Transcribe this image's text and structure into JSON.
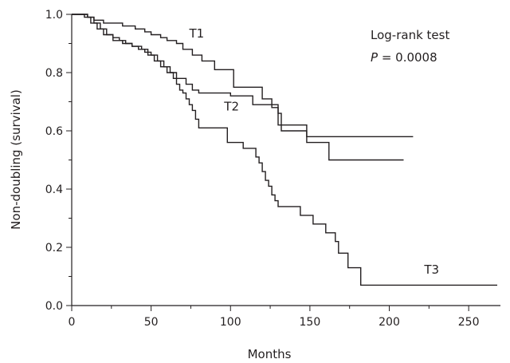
{
  "chart_data": {
    "type": "line",
    "step": true,
    "xlabel": "Months",
    "ylabel": "Non-doubling (survival)",
    "xlim": [
      0,
      270
    ],
    "ylim": [
      0,
      1.0
    ],
    "x_ticks": [
      0,
      50,
      100,
      150,
      200,
      250
    ],
    "y_ticks": [
      0.0,
      0.2,
      0.4,
      0.6,
      0.8,
      1.0
    ],
    "y_tick_labels": [
      "0.0",
      "0.2",
      "0.4",
      "0.6",
      "0.8",
      "1.0"
    ],
    "grid": false,
    "annotation": {
      "line1": "Log-rank test",
      "p_symbol": "P",
      "p_value_text": " = 0.0008"
    },
    "series": [
      {
        "name": "T1",
        "points": [
          [
            0,
            1.0
          ],
          [
            10,
            0.99
          ],
          [
            14,
            0.98
          ],
          [
            20,
            0.97
          ],
          [
            28,
            0.97
          ],
          [
            32,
            0.96
          ],
          [
            40,
            0.95
          ],
          [
            46,
            0.94
          ],
          [
            50,
            0.93
          ],
          [
            56,
            0.92
          ],
          [
            60,
            0.91
          ],
          [
            66,
            0.9
          ],
          [
            70,
            0.88
          ],
          [
            76,
            0.86
          ],
          [
            82,
            0.84
          ],
          [
            90,
            0.81
          ],
          [
            100,
            0.81
          ],
          [
            102,
            0.75
          ],
          [
            118,
            0.75
          ],
          [
            120,
            0.71
          ],
          [
            126,
            0.68
          ],
          [
            130,
            0.66
          ],
          [
            132,
            0.62
          ],
          [
            146,
            0.62
          ],
          [
            148,
            0.58
          ],
          [
            215,
            0.58
          ]
        ]
      },
      {
        "name": "T2",
        "points": [
          [
            0,
            1.0
          ],
          [
            8,
            0.99
          ],
          [
            12,
            0.97
          ],
          [
            16,
            0.95
          ],
          [
            20,
            0.93
          ],
          [
            26,
            0.91
          ],
          [
            32,
            0.9
          ],
          [
            38,
            0.89
          ],
          [
            44,
            0.88
          ],
          [
            48,
            0.86
          ],
          [
            52,
            0.84
          ],
          [
            56,
            0.82
          ],
          [
            60,
            0.8
          ],
          [
            66,
            0.78
          ],
          [
            72,
            0.76
          ],
          [
            76,
            0.74
          ],
          [
            80,
            0.73
          ],
          [
            96,
            0.73
          ],
          [
            100,
            0.72
          ],
          [
            112,
            0.72
          ],
          [
            114,
            0.69
          ],
          [
            128,
            0.69
          ],
          [
            130,
            0.62
          ],
          [
            132,
            0.6
          ],
          [
            146,
            0.6
          ],
          [
            148,
            0.56
          ],
          [
            160,
            0.56
          ],
          [
            162,
            0.5
          ],
          [
            209,
            0.5
          ]
        ]
      },
      {
        "name": "T3",
        "points": [
          [
            0,
            1.0
          ],
          [
            10,
            0.99
          ],
          [
            14,
            0.97
          ],
          [
            18,
            0.95
          ],
          [
            22,
            0.93
          ],
          [
            26,
            0.92
          ],
          [
            30,
            0.91
          ],
          [
            34,
            0.9
          ],
          [
            38,
            0.89
          ],
          [
            42,
            0.88
          ],
          [
            46,
            0.87
          ],
          [
            50,
            0.86
          ],
          [
            54,
            0.84
          ],
          [
            58,
            0.82
          ],
          [
            62,
            0.8
          ],
          [
            64,
            0.78
          ],
          [
            66,
            0.76
          ],
          [
            68,
            0.74
          ],
          [
            70,
            0.73
          ],
          [
            72,
            0.71
          ],
          [
            74,
            0.69
          ],
          [
            76,
            0.67
          ],
          [
            78,
            0.64
          ],
          [
            80,
            0.61
          ],
          [
            96,
            0.61
          ],
          [
            98,
            0.56
          ],
          [
            106,
            0.56
          ],
          [
            108,
            0.54
          ],
          [
            114,
            0.54
          ],
          [
            116,
            0.51
          ],
          [
            118,
            0.49
          ],
          [
            120,
            0.46
          ],
          [
            122,
            0.43
          ],
          [
            124,
            0.41
          ],
          [
            126,
            0.38
          ],
          [
            128,
            0.36
          ],
          [
            130,
            0.34
          ],
          [
            142,
            0.34
          ],
          [
            144,
            0.31
          ],
          [
            150,
            0.31
          ],
          [
            152,
            0.28
          ],
          [
            158,
            0.28
          ],
          [
            160,
            0.25
          ],
          [
            164,
            0.25
          ],
          [
            166,
            0.22
          ],
          [
            168,
            0.18
          ],
          [
            172,
            0.18
          ],
          [
            174,
            0.13
          ],
          [
            180,
            0.13
          ],
          [
            182,
            0.07
          ],
          [
            268,
            0.07
          ]
        ]
      }
    ],
    "series_label_positions": [
      {
        "name": "T1",
        "x": 74,
        "y": 0.92
      },
      {
        "name": "T2",
        "x": 96,
        "y": 0.67
      },
      {
        "name": "T3",
        "x": 222,
        "y": 0.11
      }
    ]
  }
}
